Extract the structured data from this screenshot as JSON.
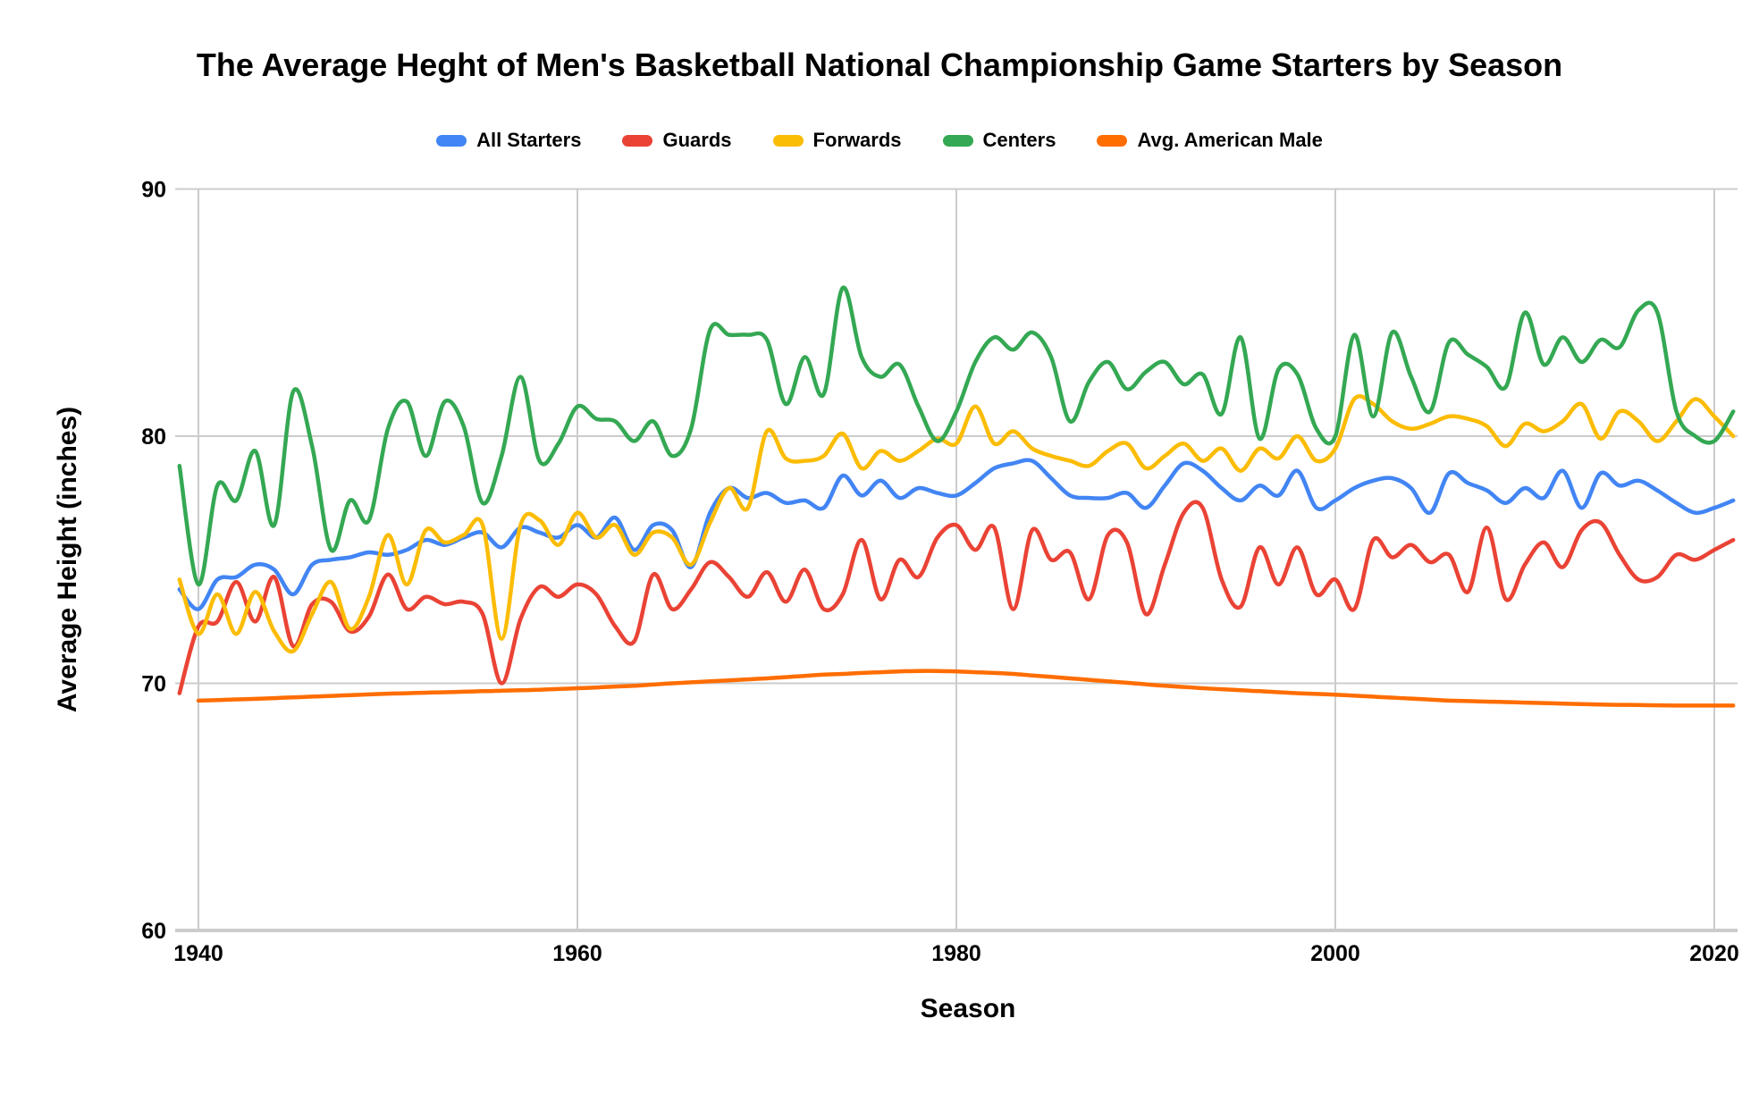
{
  "title": "The Average Heght of Men's Basketball National Championship Game Starters by Season",
  "axes": {
    "x_title": "Season",
    "y_title": "Average Height (inches)",
    "x_tick_labels": [
      "1940",
      "1960",
      "1980",
      "2000",
      "2020"
    ],
    "y_tick_labels": [
      "90",
      "80",
      "70",
      "60"
    ]
  },
  "colors": {
    "gridline": "#cccccc",
    "baseline": "#cccccc",
    "text": "#000000",
    "background": "#ffffff"
  },
  "chart_data": {
    "type": "line",
    "smooth": true,
    "title": "The Average Heght of Men's Basketball National Championship Game Starters by Season",
    "xlabel": "Season",
    "ylabel": "Average Height (inches)",
    "xlim": [
      1938.8,
      2022.2
    ],
    "ylim": [
      60,
      90
    ],
    "x_ticks": [
      1940,
      1960,
      1980,
      2000,
      2020
    ],
    "y_ticks": [
      90,
      80,
      70,
      60
    ],
    "grid": true,
    "legend_position": "top",
    "x": [
      1939,
      1940,
      1941,
      1942,
      1943,
      1944,
      1945,
      1946,
      1947,
      1948,
      1949,
      1950,
      1951,
      1952,
      1953,
      1954,
      1955,
      1956,
      1957,
      1958,
      1959,
      1960,
      1961,
      1962,
      1963,
      1964,
      1965,
      1966,
      1967,
      1968,
      1969,
      1970,
      1971,
      1972,
      1973,
      1974,
      1975,
      1976,
      1977,
      1978,
      1979,
      1980,
      1981,
      1982,
      1983,
      1984,
      1985,
      1986,
      1987,
      1988,
      1989,
      1990,
      1991,
      1992,
      1993,
      1994,
      1995,
      1996,
      1997,
      1998,
      1999,
      2000,
      2001,
      2002,
      2003,
      2004,
      2005,
      2006,
      2007,
      2008,
      2009,
      2010,
      2011,
      2012,
      2013,
      2014,
      2015,
      2016,
      2017,
      2018,
      2019,
      2020,
      2021
    ],
    "series": [
      {
        "name": "All Starters",
        "color": "#4285F4",
        "values": [
          73.8,
          73.0,
          74.2,
          74.3,
          74.8,
          74.6,
          73.6,
          74.8,
          75.0,
          75.1,
          75.3,
          75.2,
          75.4,
          75.8,
          75.6,
          75.9,
          76.1,
          75.5,
          76.3,
          76.1,
          75.9,
          76.4,
          75.9,
          76.7,
          75.4,
          76.4,
          76.2,
          74.7,
          76.9,
          77.9,
          77.5,
          77.7,
          77.3,
          77.4,
          77.1,
          78.4,
          77.6,
          78.2,
          77.5,
          77.9,
          77.7,
          77.6,
          78.1,
          78.7,
          78.9,
          79.0,
          78.3,
          77.6,
          77.5,
          77.5,
          77.7,
          77.1,
          78.0,
          78.9,
          78.6,
          77.9,
          77.4,
          78.0,
          77.6,
          78.6,
          77.1,
          77.4,
          77.9,
          78.2,
          78.3,
          77.9,
          76.9,
          78.5,
          78.1,
          77.8,
          77.3,
          77.9,
          77.5,
          78.6,
          77.1,
          78.5,
          78.0,
          78.2,
          77.8,
          77.3,
          76.9,
          77.1,
          77.4
        ]
      },
      {
        "name": "Guards",
        "color": "#EA4335",
        "values": [
          69.6,
          72.3,
          72.5,
          74.1,
          72.5,
          74.3,
          71.5,
          73.2,
          73.3,
          72.1,
          72.7,
          74.4,
          73.0,
          73.5,
          73.2,
          73.3,
          72.8,
          70.0,
          72.6,
          73.9,
          73.5,
          74.0,
          73.6,
          72.3,
          71.7,
          74.4,
          73.0,
          73.8,
          74.9,
          74.3,
          73.5,
          74.5,
          73.3,
          74.6,
          73.0,
          73.6,
          75.8,
          73.4,
          75.0,
          74.3,
          75.9,
          76.4,
          75.4,
          76.3,
          73.0,
          76.2,
          75.0,
          75.3,
          73.4,
          76.0,
          75.7,
          72.8,
          74.8,
          76.9,
          77.1,
          74.2,
          73.1,
          75.5,
          74.0,
          75.5,
          73.6,
          74.2,
          73.0,
          75.8,
          75.1,
          75.6,
          74.9,
          75.2,
          73.7,
          76.3,
          73.4,
          74.8,
          75.7,
          74.7,
          76.2,
          76.5,
          75.2,
          74.2,
          74.3,
          75.2,
          75.0,
          75.4,
          75.8
        ]
      },
      {
        "name": "Forwards",
        "color": "#FBBC04",
        "values": [
          74.2,
          72.0,
          73.6,
          72.0,
          73.7,
          72.1,
          71.3,
          72.8,
          74.1,
          72.2,
          73.5,
          76.0,
          74.0,
          76.2,
          75.7,
          76.0,
          76.4,
          71.8,
          76.4,
          76.6,
          75.6,
          76.9,
          75.9,
          76.4,
          75.2,
          76.1,
          75.9,
          74.8,
          76.5,
          77.9,
          77.1,
          80.2,
          79.1,
          79.0,
          79.2,
          80.1,
          78.7,
          79.4,
          79.0,
          79.4,
          79.9,
          79.7,
          81.2,
          79.7,
          80.2,
          79.5,
          79.2,
          79.0,
          78.8,
          79.4,
          79.7,
          78.7,
          79.2,
          79.7,
          79.0,
          79.5,
          78.6,
          79.5,
          79.1,
          80.0,
          79.0,
          79.5,
          81.5,
          81.3,
          80.6,
          80.3,
          80.5,
          80.8,
          80.7,
          80.4,
          79.6,
          80.5,
          80.2,
          80.6,
          81.3,
          79.9,
          81.0,
          80.6,
          79.8,
          80.6,
          81.5,
          80.8,
          80.0
        ]
      },
      {
        "name": "Centers",
        "color": "#34A853",
        "values": [
          78.8,
          74.0,
          78.0,
          77.4,
          79.4,
          76.4,
          81.8,
          79.6,
          75.4,
          77.4,
          76.6,
          80.3,
          81.4,
          79.2,
          81.4,
          80.4,
          77.3,
          79.2,
          82.4,
          79.0,
          79.7,
          81.2,
          80.7,
          80.6,
          79.8,
          80.6,
          79.2,
          80.3,
          84.3,
          84.1,
          84.1,
          83.9,
          81.3,
          83.2,
          81.7,
          86.0,
          83.2,
          82.4,
          82.9,
          81.2,
          79.8,
          81.0,
          83.0,
          84.0,
          83.5,
          84.2,
          83.2,
          80.6,
          82.2,
          83.0,
          81.9,
          82.6,
          83.0,
          82.1,
          82.5,
          80.9,
          84.0,
          79.9,
          82.7,
          82.5,
          80.3,
          80.0,
          84.1,
          80.8,
          84.2,
          82.4,
          81.0,
          83.8,
          83.3,
          82.8,
          82.0,
          85.0,
          82.9,
          84.0,
          83.0,
          83.9,
          83.6,
          85.1,
          85.0,
          81.0,
          80.0,
          79.8,
          81.0
        ]
      },
      {
        "name": "Avg. American Male",
        "color": "#FF6D01",
        "values": [
          null,
          69.3,
          69.32,
          69.35,
          69.37,
          69.4,
          69.43,
          69.46,
          69.49,
          69.52,
          69.55,
          69.58,
          69.6,
          69.62,
          69.64,
          69.66,
          69.68,
          69.7,
          69.72,
          69.74,
          69.77,
          69.8,
          69.83,
          69.87,
          69.9,
          69.95,
          70.0,
          70.04,
          70.08,
          70.12,
          70.16,
          70.2,
          70.25,
          70.3,
          70.35,
          70.38,
          70.42,
          70.45,
          70.48,
          70.5,
          70.5,
          70.48,
          70.45,
          70.42,
          70.38,
          70.32,
          70.26,
          70.2,
          70.14,
          70.08,
          70.02,
          69.96,
          69.9,
          69.85,
          69.8,
          69.76,
          69.72,
          69.68,
          69.64,
          69.6,
          69.57,
          69.54,
          69.5,
          69.46,
          69.42,
          69.38,
          69.34,
          69.3,
          69.28,
          69.26,
          69.24,
          69.22,
          69.2,
          69.18,
          69.16,
          69.14,
          69.13,
          69.12,
          69.11,
          69.1,
          69.1,
          69.1,
          69.1
        ]
      }
    ]
  }
}
